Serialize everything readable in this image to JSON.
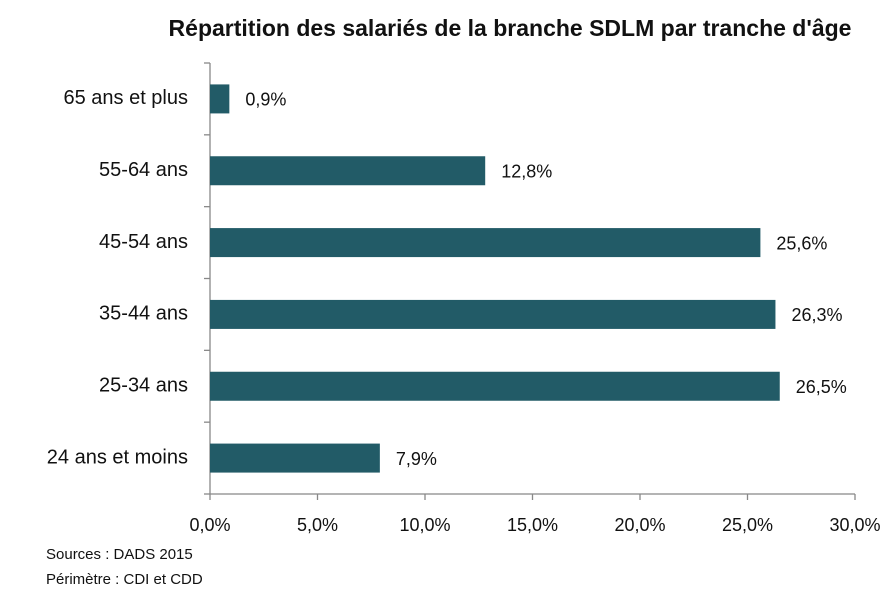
{
  "chart_data": {
    "type": "bar",
    "orientation": "horizontal",
    "title": "Répartition des salariés de la branche SDLM par tranche d'âge",
    "categories": [
      "65 ans et plus",
      "55-64 ans",
      "45-54 ans",
      "35-44 ans",
      "25-34 ans",
      "24 ans et moins"
    ],
    "values": [
      0.9,
      12.8,
      25.6,
      26.3,
      26.5,
      7.9
    ],
    "value_labels": [
      "0,9%",
      "12,8%",
      "25,6%",
      "26,3%",
      "26,5%",
      "7,9%"
    ],
    "color": "#225b67",
    "xlim": [
      0,
      30
    ],
    "xticks": [
      {
        "value": 0,
        "label": "0,0%"
      },
      {
        "value": 5,
        "label": "5,0%"
      },
      {
        "value": 10,
        "label": "10,0%"
      },
      {
        "value": 15,
        "label": "15,0%"
      },
      {
        "value": 20,
        "label": "20,0%"
      },
      {
        "value": 25,
        "label": "25,0%"
      },
      {
        "value": 30,
        "label": "30,0%"
      }
    ],
    "grid": false,
    "notes": [
      "Sources : DADS 2015",
      "Périmètre : CDI et CDD"
    ]
  }
}
